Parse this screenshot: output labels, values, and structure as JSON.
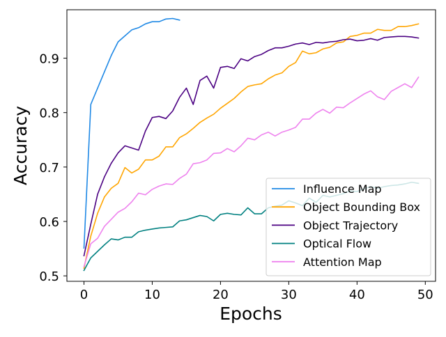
{
  "chart_data": {
    "type": "line",
    "title": "",
    "xlabel": "Epochs",
    "ylabel": "Accuracy",
    "xlim": [
      -2.5,
      51.5
    ],
    "ylim": [
      0.49,
      0.989
    ],
    "xticks": [
      0,
      10,
      20,
      30,
      40,
      50
    ],
    "xtick_labels": [
      "0",
      "10",
      "20",
      "30",
      "40",
      "50"
    ],
    "yticks": [
      0.5,
      0.6,
      0.7,
      0.8,
      0.9
    ],
    "ytick_labels": [
      "0.5",
      "0.6",
      "0.7",
      "0.8",
      "0.9"
    ],
    "grid": false,
    "legend_position": "lower-right",
    "series": [
      {
        "name": "Influence Map",
        "color": "#1e88e5",
        "x": [
          0,
          1,
          2,
          3,
          4,
          5,
          6,
          7,
          8,
          9,
          10,
          11,
          12,
          13,
          14
        ],
        "values": [
          0.551,
          0.815,
          0.845,
          0.875,
          0.905,
          0.93,
          0.941,
          0.952,
          0.956,
          0.963,
          0.967,
          0.967,
          0.972,
          0.973,
          0.97
        ]
      },
      {
        "name": "Object Bounding Box",
        "color": "#ffa500",
        "x": [
          0,
          1,
          2,
          3,
          4,
          5,
          6,
          7,
          8,
          9,
          10,
          11,
          12,
          13,
          14,
          15,
          16,
          17,
          18,
          19,
          20,
          21,
          22,
          23,
          24,
          25,
          26,
          27,
          28,
          29,
          30,
          31,
          32,
          33,
          34,
          35,
          36,
          37,
          38,
          39,
          40,
          41,
          42,
          43,
          44,
          45,
          46,
          47,
          48,
          49
        ],
        "values": [
          0.514,
          0.573,
          0.615,
          0.645,
          0.661,
          0.67,
          0.699,
          0.689,
          0.696,
          0.713,
          0.713,
          0.72,
          0.737,
          0.737,
          0.754,
          0.761,
          0.771,
          0.782,
          0.79,
          0.797,
          0.808,
          0.817,
          0.826,
          0.838,
          0.848,
          0.851,
          0.853,
          0.862,
          0.869,
          0.873,
          0.885,
          0.892,
          0.913,
          0.908,
          0.91,
          0.917,
          0.92,
          0.928,
          0.93,
          0.94,
          0.942,
          0.946,
          0.946,
          0.953,
          0.951,
          0.951,
          0.958,
          0.958,
          0.96,
          0.963
        ]
      },
      {
        "name": "Object Trajectory",
        "color": "#4b0082",
        "x": [
          0,
          1,
          2,
          3,
          4,
          5,
          6,
          7,
          8,
          9,
          10,
          11,
          12,
          13,
          14,
          15,
          16,
          17,
          18,
          19,
          20,
          21,
          22,
          23,
          24,
          25,
          26,
          27,
          28,
          29,
          30,
          31,
          32,
          33,
          34,
          35,
          36,
          37,
          38,
          39,
          40,
          41,
          42,
          43,
          44,
          45,
          46,
          47,
          48,
          49
        ],
        "values": [
          0.537,
          0.595,
          0.65,
          0.682,
          0.707,
          0.726,
          0.739,
          0.735,
          0.731,
          0.766,
          0.791,
          0.793,
          0.789,
          0.803,
          0.828,
          0.845,
          0.815,
          0.859,
          0.867,
          0.845,
          0.883,
          0.885,
          0.881,
          0.899,
          0.895,
          0.903,
          0.907,
          0.914,
          0.919,
          0.919,
          0.922,
          0.926,
          0.928,
          0.925,
          0.929,
          0.928,
          0.93,
          0.931,
          0.934,
          0.935,
          0.932,
          0.933,
          0.936,
          0.933,
          0.938,
          0.939,
          0.94,
          0.94,
          0.939,
          0.937
        ]
      },
      {
        "name": "Optical Flow",
        "color": "#008080",
        "x": [
          0,
          1,
          2,
          3,
          4,
          5,
          6,
          7,
          8,
          9,
          10,
          11,
          12,
          13,
          14,
          15,
          16,
          17,
          18,
          19,
          20,
          21,
          22,
          23,
          24,
          25,
          26,
          27,
          28,
          29,
          30,
          31,
          32,
          33,
          34,
          35,
          36,
          37,
          38,
          39,
          40,
          41,
          42,
          43,
          44,
          45,
          46,
          47,
          48,
          49
        ],
        "values": [
          0.51,
          0.533,
          0.545,
          0.557,
          0.568,
          0.566,
          0.571,
          0.571,
          0.581,
          0.584,
          0.586,
          0.588,
          0.589,
          0.59,
          0.601,
          0.603,
          0.607,
          0.611,
          0.609,
          0.601,
          0.613,
          0.615,
          0.613,
          0.612,
          0.625,
          0.614,
          0.614,
          0.625,
          0.628,
          0.63,
          0.638,
          0.634,
          0.629,
          0.643,
          0.635,
          0.648,
          0.645,
          0.648,
          0.651,
          0.656,
          0.655,
          0.66,
          0.664,
          0.661,
          0.664,
          0.666,
          0.667,
          0.669,
          0.672,
          0.67
        ]
      },
      {
        "name": "Attention Map",
        "color": "#ee82ee",
        "x": [
          0,
          1,
          2,
          3,
          4,
          5,
          6,
          7,
          8,
          9,
          10,
          11,
          12,
          13,
          14,
          15,
          16,
          17,
          18,
          19,
          20,
          21,
          22,
          23,
          24,
          25,
          26,
          27,
          28,
          29,
          30,
          31,
          32,
          33,
          34,
          35,
          36,
          37,
          38,
          39,
          40,
          41,
          42,
          43,
          44,
          45,
          46,
          47,
          48,
          49
        ],
        "values": [
          0.517,
          0.559,
          0.569,
          0.591,
          0.604,
          0.617,
          0.624,
          0.636,
          0.652,
          0.649,
          0.659,
          0.665,
          0.669,
          0.668,
          0.679,
          0.687,
          0.706,
          0.708,
          0.713,
          0.725,
          0.726,
          0.734,
          0.728,
          0.739,
          0.753,
          0.75,
          0.759,
          0.764,
          0.757,
          0.764,
          0.768,
          0.773,
          0.788,
          0.788,
          0.799,
          0.806,
          0.799,
          0.81,
          0.809,
          0.818,
          0.826,
          0.834,
          0.84,
          0.829,
          0.824,
          0.839,
          0.846,
          0.853,
          0.846,
          0.865
        ]
      }
    ]
  }
}
